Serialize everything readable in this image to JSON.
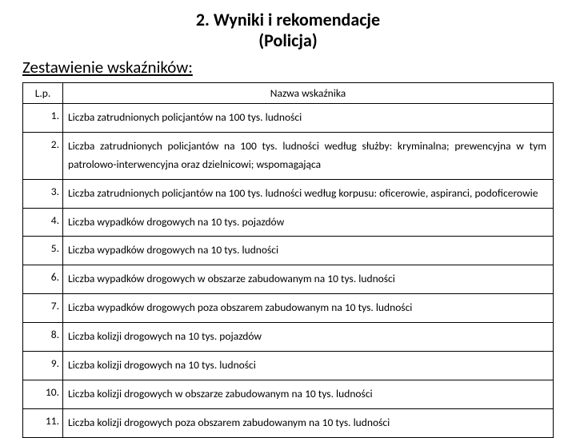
{
  "heading": {
    "line1": "2. Wyniki i rekomendacje",
    "line2": "(Policja)"
  },
  "subtitle": "Zestawienie wskaźników:",
  "table": {
    "headers": {
      "lp": "L.p.",
      "name": "Nazwa wskaźnika"
    },
    "rows": [
      {
        "lp": "1.",
        "text": "Liczba zatrudnionych policjantów na 100 tys. ludności"
      },
      {
        "lp": "2.",
        "text": "Liczba zatrudnionych policjantów na 100 tys. ludności według służby: kryminalna; prewencyjna w tym patrolowo-interwencyjna oraz dzielnicowi; wspomagająca"
      },
      {
        "lp": "3.",
        "text": "Liczba zatrudnionych policjantów na 100 tys. ludności według korpusu: oficerowie, aspiranci, podoficerowie"
      },
      {
        "lp": "4.",
        "text": "Liczba wypadków drogowych na 10 tys. pojazdów"
      },
      {
        "lp": "5.",
        "text": "Liczba wypadków drogowych na 10 tys. ludności"
      },
      {
        "lp": "6.",
        "text": "Liczba wypadków drogowych w obszarze zabudowanym na 10 tys. ludności"
      },
      {
        "lp": "7.",
        "text": "Liczba wypadków drogowych poza obszarem zabudowanym na 10 tys. ludności"
      },
      {
        "lp": "8.",
        "text": "Liczba kolizji drogowych na 10 tys. pojazdów"
      },
      {
        "lp": "9.",
        "text": "Liczba kolizji drogowych na 10 tys. ludności"
      },
      {
        "lp": "10.",
        "text": "Liczba kolizji drogowych w obszarze zabudowanym na 10 tys. ludności"
      },
      {
        "lp": "11.",
        "text": "Liczba kolizji drogowych poza obszarem zabudowanym na 10 tys. ludności"
      }
    ]
  }
}
